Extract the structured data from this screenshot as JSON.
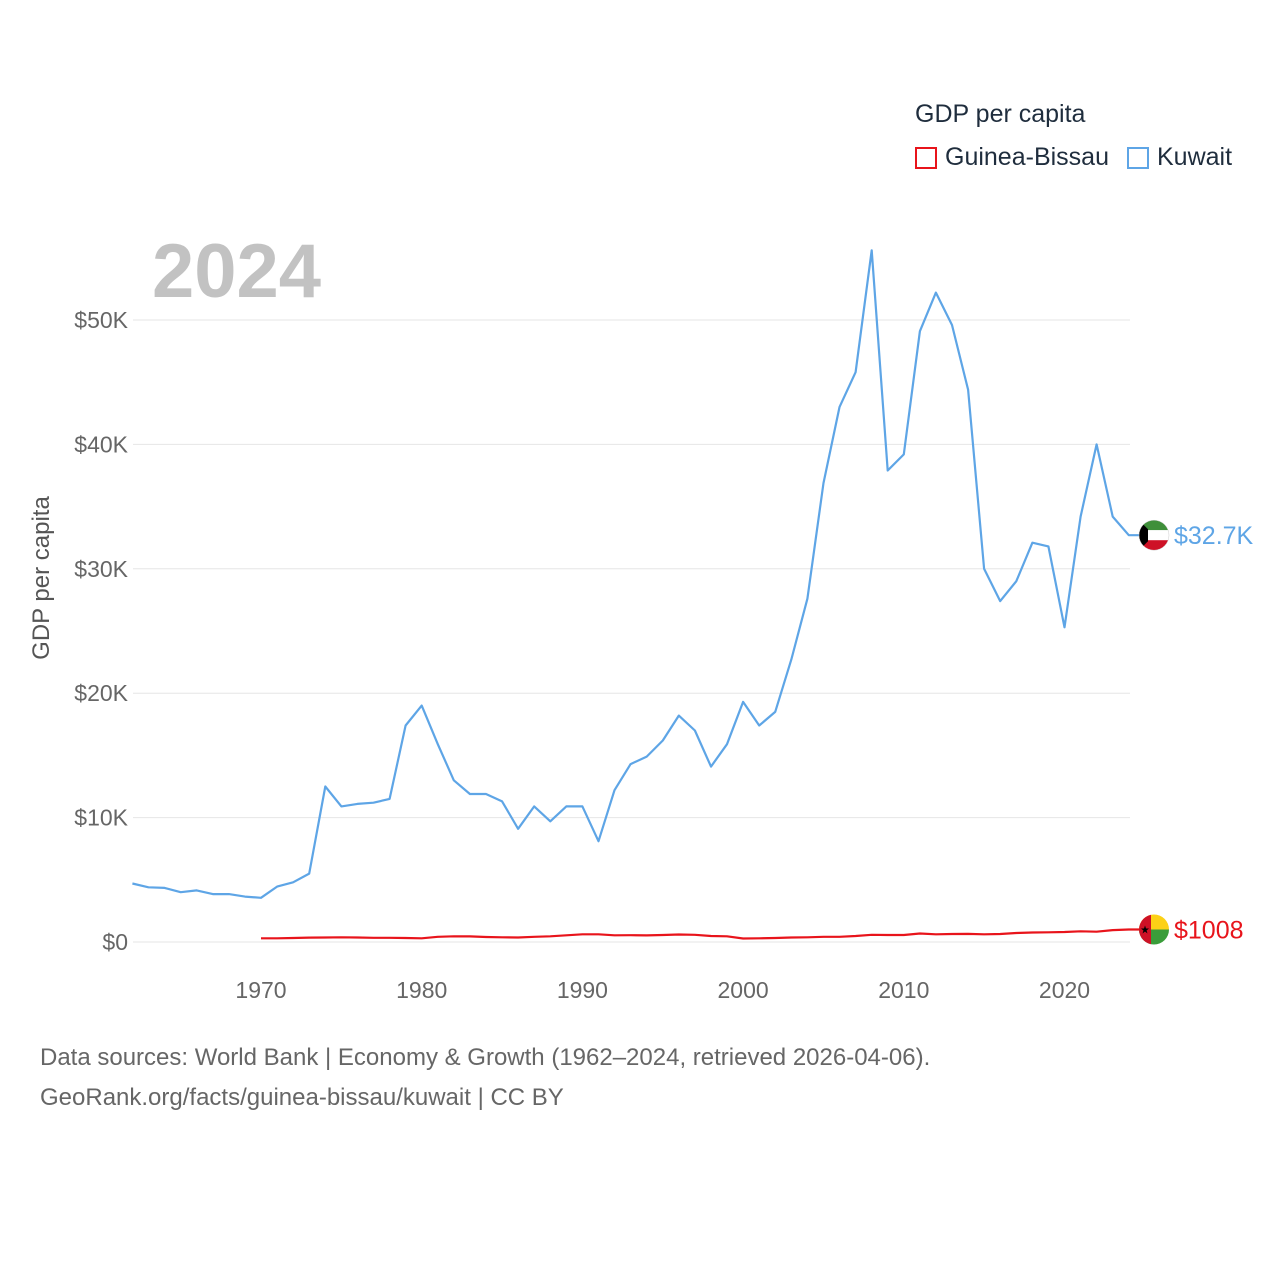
{
  "legend": {
    "title": "GDP per capita",
    "items": [
      {
        "name": "Guinea-Bissau",
        "color": "#e8141b"
      },
      {
        "name": "Kuwait",
        "color": "#5ea5e6"
      }
    ]
  },
  "year_label": "2024",
  "footer": {
    "line1": "Data sources: World Bank | Economy & Growth (1962–2024, retrieved 2026-04-06).",
    "line2": "GeoRank.org/facts/guinea-bissau/kuwait | CC BY"
  },
  "chart_data": {
    "type": "line",
    "title": "GDP per capita",
    "xlabel": "",
    "ylabel": "GDP per capita",
    "xlim": [
      1962,
      2024
    ],
    "ylim": [
      0,
      55000
    ],
    "y_ticks": [
      0,
      10000,
      20000,
      30000,
      40000,
      50000
    ],
    "y_tick_labels": [
      "$0",
      "$10K",
      "$20K",
      "$30K",
      "$40K",
      "$50K"
    ],
    "x_ticks": [
      1970,
      1980,
      1990,
      2000,
      2010,
      2020
    ],
    "x_tick_labels": [
      "1970",
      "1980",
      "1990",
      "2000",
      "2010",
      "2020"
    ],
    "grid": true,
    "legend_position": "top-right",
    "series": [
      {
        "name": "Kuwait",
        "color": "#5ea5e6",
        "end_label": "$32.7K",
        "x": [
          1962,
          1963,
          1964,
          1965,
          1966,
          1967,
          1968,
          1969,
          1970,
          1971,
          1972,
          1973,
          1974,
          1975,
          1976,
          1977,
          1978,
          1979,
          1980,
          1981,
          1982,
          1983,
          1984,
          1985,
          1986,
          1987,
          1988,
          1989,
          1990,
          1991,
          1992,
          1993,
          1994,
          1995,
          1996,
          1997,
          1998,
          1999,
          2000,
          2001,
          2002,
          2003,
          2004,
          2005,
          2006,
          2007,
          2008,
          2009,
          2010,
          2011,
          2012,
          2013,
          2014,
          2015,
          2016,
          2017,
          2018,
          2019,
          2020,
          2021,
          2022,
          2023,
          2024
        ],
        "values": [
          4700,
          4400,
          4350,
          4000,
          4150,
          3850,
          3850,
          3650,
          3550,
          4450,
          4800,
          5500,
          12500,
          10900,
          11100,
          11200,
          11500,
          17400,
          19000,
          15900,
          13000,
          11900,
          11900,
          11300,
          9100,
          10900,
          9700,
          10900,
          10900,
          8100,
          12200,
          14300,
          14900,
          16200,
          18200,
          17000,
          14100,
          15900,
          19300,
          17400,
          18500,
          22700,
          27600,
          36900,
          43000,
          45800,
          55600,
          37900,
          39200,
          49100,
          52200,
          49600,
          44400,
          30000,
          27400,
          29000,
          32100,
          31800,
          25300,
          34200,
          40000,
          34200,
          32700
        ]
      },
      {
        "name": "Guinea-Bissau",
        "color": "#e8141b",
        "end_label": "$1008",
        "x": [
          1970,
          1971,
          1972,
          1973,
          1974,
          1975,
          1976,
          1977,
          1978,
          1979,
          1980,
          1981,
          1982,
          1983,
          1984,
          1985,
          1986,
          1987,
          1988,
          1989,
          1990,
          1991,
          1992,
          1993,
          1994,
          1995,
          1996,
          1997,
          1998,
          1999,
          2000,
          2001,
          2002,
          2003,
          2004,
          2005,
          2006,
          2007,
          2008,
          2009,
          2010,
          2011,
          2012,
          2013,
          2014,
          2015,
          2016,
          2017,
          2018,
          2019,
          2020,
          2021,
          2022,
          2023,
          2024
        ],
        "values": [
          300,
          300,
          320,
          350,
          360,
          380,
          360,
          340,
          340,
          320,
          300,
          420,
          460,
          450,
          400,
          380,
          360,
          420,
          460,
          540,
          620,
          620,
          540,
          550,
          530,
          560,
          600,
          580,
          480,
          460,
          280,
          300,
          320,
          360,
          380,
          420,
          420,
          480,
          580,
          560,
          560,
          680,
          620,
          640,
          650,
          620,
          640,
          720,
          760,
          780,
          800,
          860,
          830,
          960,
          1008
        ]
      }
    ]
  }
}
